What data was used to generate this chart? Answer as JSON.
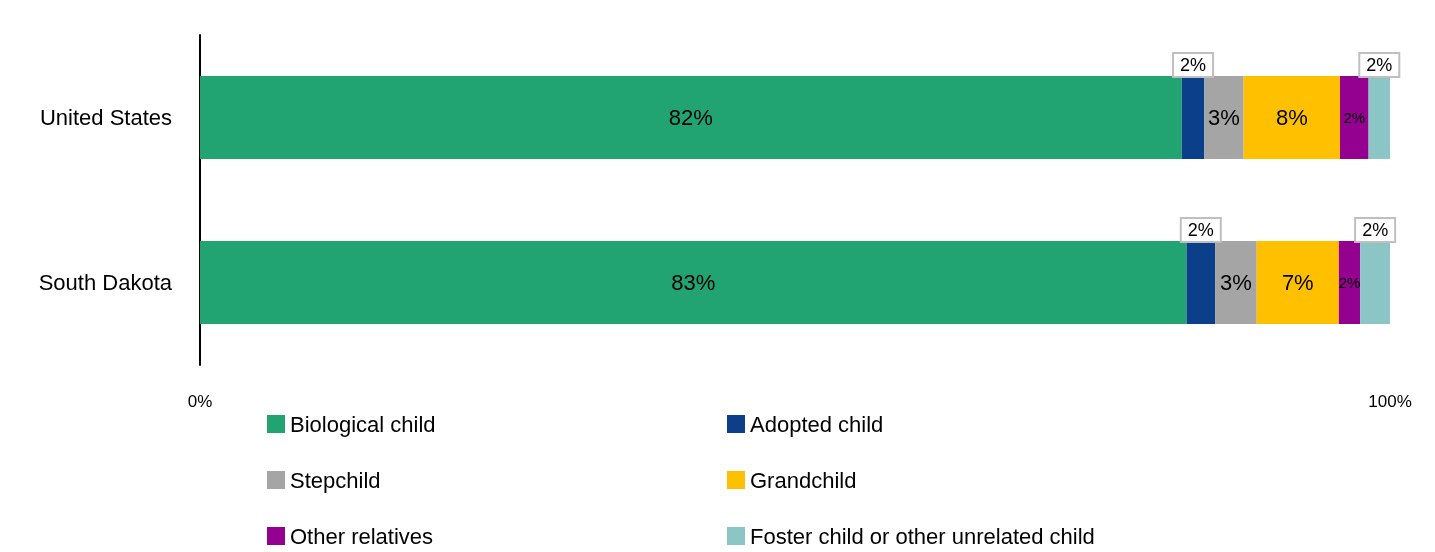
{
  "chart_data": {
    "type": "bar",
    "orientation": "horizontal",
    "stacked": true,
    "categories": [
      "United States",
      "South Dakota"
    ],
    "series": [
      {
        "name": "Biological child",
        "color": "#21a472",
        "values": [
          82.5,
          82.9
        ],
        "value_labels": [
          "82%",
          "83%"
        ]
      },
      {
        "name": "Adopted child",
        "color": "#0b3f8a",
        "values": [
          1.9,
          2.4
        ],
        "value_labels": [
          "2%",
          "2%"
        ]
      },
      {
        "name": "Stepchild",
        "color": "#a5a5a5",
        "values": [
          3.3,
          3.5
        ],
        "value_labels": [
          "3%",
          "3%"
        ]
      },
      {
        "name": "Grandchild",
        "color": "#ffc000",
        "values": [
          8.1,
          6.9
        ],
        "value_labels": [
          "8%",
          "7%"
        ]
      },
      {
        "name": "Other relatives",
        "color": "#94008f",
        "values": [
          2.4,
          1.8
        ],
        "value_labels": [
          "2%",
          "2%"
        ]
      },
      {
        "name": "Foster child or other unrelated child",
        "color": "#8bc5c5",
        "values": [
          1.8,
          2.5
        ],
        "value_labels": [
          "2%",
          "2%"
        ]
      }
    ],
    "xlim": [
      0,
      100
    ],
    "xticks": [
      {
        "value": 0,
        "label": "0%"
      },
      {
        "value": 100,
        "label": "100%"
      }
    ],
    "grid": false,
    "legend": "bottom"
  }
}
